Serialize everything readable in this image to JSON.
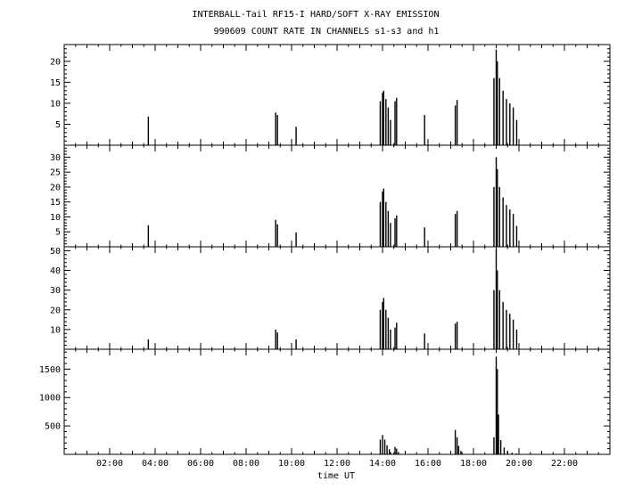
{
  "chart_data": {
    "type": "line",
    "title": "INTERBALL-Tail RF15-I HARD/SOFT X-RAY EMISSION",
    "subtitle": "990609  COUNT RATE IN CHANNELS s1-s3 and h1",
    "xlabel": "time UT",
    "x_unit": "hours UT",
    "xlim": [
      0,
      24
    ],
    "x_ticks": [
      "02:00",
      "04:00",
      "06:00",
      "08:00",
      "10:00",
      "12:00",
      "14:00",
      "16:00",
      "18:00",
      "20:00",
      "22:00"
    ],
    "grid": false,
    "panels": [
      {
        "channel": "s1",
        "ylim": [
          0,
          24
        ],
        "y_ticks": [
          "5",
          "10",
          "15",
          "20"
        ],
        "points": [
          [
            3.7,
            6.8
          ],
          [
            9.3,
            7.8
          ],
          [
            9.38,
            7.2
          ],
          [
            10.2,
            4.4
          ],
          [
            13.9,
            10.5
          ],
          [
            14.0,
            12.5
          ],
          [
            14.05,
            13.0
          ],
          [
            14.15,
            11.0
          ],
          [
            14.25,
            9.0
          ],
          [
            14.35,
            6.0
          ],
          [
            14.55,
            10.5
          ],
          [
            14.62,
            11.3
          ],
          [
            15.85,
            7.2
          ],
          [
            17.2,
            9.5
          ],
          [
            17.28,
            10.8
          ],
          [
            18.9,
            16.0
          ],
          [
            19.0,
            22.8
          ],
          [
            19.05,
            20.0
          ],
          [
            19.15,
            16.0
          ],
          [
            19.3,
            13.0
          ],
          [
            19.45,
            11.0
          ],
          [
            19.6,
            10.0
          ],
          [
            19.75,
            9.0
          ],
          [
            19.9,
            6.0
          ]
        ]
      },
      {
        "channel": "s2",
        "ylim": [
          0,
          34
        ],
        "y_ticks": [
          "5",
          "10",
          "15",
          "20",
          "25",
          "30"
        ],
        "points": [
          [
            3.7,
            7.2
          ],
          [
            9.3,
            9.0
          ],
          [
            9.38,
            7.5
          ],
          [
            10.2,
            4.8
          ],
          [
            13.9,
            15.0
          ],
          [
            14.0,
            18.5
          ],
          [
            14.05,
            19.5
          ],
          [
            14.15,
            15.0
          ],
          [
            14.25,
            12.0
          ],
          [
            14.35,
            8.0
          ],
          [
            14.55,
            9.5
          ],
          [
            14.62,
            10.5
          ],
          [
            15.85,
            6.5
          ],
          [
            17.2,
            11.0
          ],
          [
            17.28,
            12.0
          ],
          [
            18.9,
            20.0
          ],
          [
            19.0,
            30.0
          ],
          [
            19.05,
            26.0
          ],
          [
            19.15,
            20.0
          ],
          [
            19.3,
            16.5
          ],
          [
            19.45,
            14.0
          ],
          [
            19.6,
            12.5
          ],
          [
            19.75,
            11.0
          ],
          [
            19.9,
            7.0
          ]
        ]
      },
      {
        "channel": "s3",
        "ylim": [
          0,
          52
        ],
        "y_ticks": [
          "10",
          "20",
          "30",
          "40",
          "50"
        ],
        "points": [
          [
            3.7,
            5.0
          ],
          [
            9.3,
            10.0
          ],
          [
            9.38,
            8.5
          ],
          [
            10.2,
            5.0
          ],
          [
            13.9,
            20.0
          ],
          [
            14.0,
            24.0
          ],
          [
            14.05,
            26.0
          ],
          [
            14.15,
            20.0
          ],
          [
            14.25,
            16.0
          ],
          [
            14.35,
            10.0
          ],
          [
            14.55,
            11.0
          ],
          [
            14.62,
            13.5
          ],
          [
            15.85,
            8.0
          ],
          [
            17.2,
            13.0
          ],
          [
            17.28,
            14.0
          ],
          [
            18.9,
            30.0
          ],
          [
            19.0,
            51.0
          ],
          [
            19.05,
            40.0
          ],
          [
            19.15,
            30.0
          ],
          [
            19.3,
            24.0
          ],
          [
            19.45,
            20.0
          ],
          [
            19.6,
            18.0
          ],
          [
            19.75,
            15.0
          ],
          [
            19.9,
            10.0
          ]
        ]
      },
      {
        "channel": "h1",
        "ylim": [
          0,
          1850
        ],
        "y_ticks": [
          "500",
          "1000",
          "1500"
        ],
        "points": [
          [
            13.9,
            260
          ],
          [
            14.0,
            340
          ],
          [
            14.1,
            260
          ],
          [
            14.2,
            160
          ],
          [
            14.3,
            90
          ],
          [
            14.35,
            40
          ],
          [
            14.55,
            130
          ],
          [
            14.62,
            100
          ],
          [
            14.7,
            40
          ],
          [
            17.2,
            430
          ],
          [
            17.28,
            300
          ],
          [
            17.35,
            150
          ],
          [
            17.45,
            60
          ],
          [
            18.9,
            300
          ],
          [
            19.0,
            1720
          ],
          [
            19.05,
            1500
          ],
          [
            19.1,
            700
          ],
          [
            19.2,
            250
          ],
          [
            19.35,
            120
          ],
          [
            19.5,
            60
          ],
          [
            19.7,
            30
          ],
          [
            19.9,
            15
          ]
        ]
      }
    ]
  }
}
